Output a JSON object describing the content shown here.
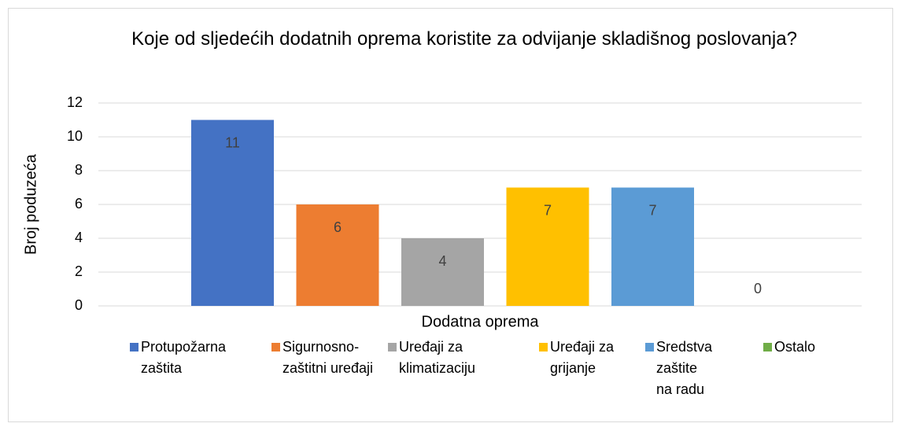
{
  "chart_data": {
    "type": "bar",
    "title": "Koje od sljedećih dodatnih oprema koristite za odvijanje skladišnog poslovanja?",
    "x_label": "Dodatna oprema",
    "y_label": "Broj poduzeća",
    "categories": [
      null
    ],
    "series": [
      {
        "name": "Protupožarna zaštita",
        "color": "#4472c4",
        "values": [
          11
        ]
      },
      {
        "name": "Sigurnosno-zaštitni uređaji",
        "color": "#ed7d31",
        "values": [
          6
        ]
      },
      {
        "name": "Uređaji za klimatizaciju",
        "color": "#a5a5a5",
        "values": [
          4
        ]
      },
      {
        "name": "Uređaji za grijanje",
        "color": "#ffc000",
        "values": [
          7
        ]
      },
      {
        "name": "Sredstva zaštite na radu",
        "color": "#5b9bd5",
        "values": [
          7
        ]
      },
      {
        "name": "Ostalo",
        "color": "#70ad47",
        "values": [
          0
        ]
      }
    ],
    "ylim": [
      0,
      12
    ],
    "yticks": [
      0,
      2,
      4,
      6,
      8,
      10,
      12
    ],
    "grid": true,
    "legend": "bottom"
  }
}
